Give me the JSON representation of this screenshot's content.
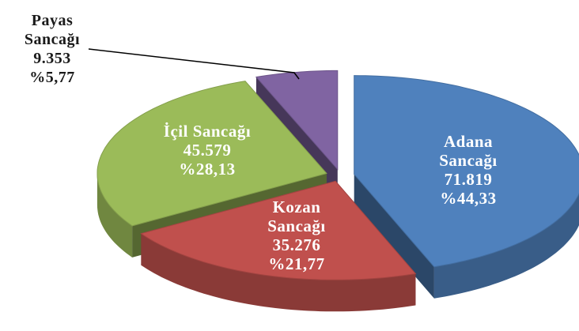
{
  "chart_data": {
    "type": "pie",
    "categories": [
      "Adana Sancağı",
      "Kozan Sancağı",
      "İçil Sancağı",
      "Payas Sancağı"
    ],
    "values": [
      71819,
      35276,
      45579,
      9353
    ],
    "value_labels": [
      "71.819",
      "35.276",
      "45.579",
      "9.353"
    ],
    "shares": [
      44.33,
      21.77,
      28.13,
      5.77
    ],
    "share_labels": [
      "%44,33",
      "%21,77",
      "%28,13",
      "%5,77"
    ],
    "colors": [
      "#4f81bd",
      "#c0504d",
      "#9bbb59",
      "#8064a2"
    ],
    "exploded": true,
    "three_d": true
  }
}
